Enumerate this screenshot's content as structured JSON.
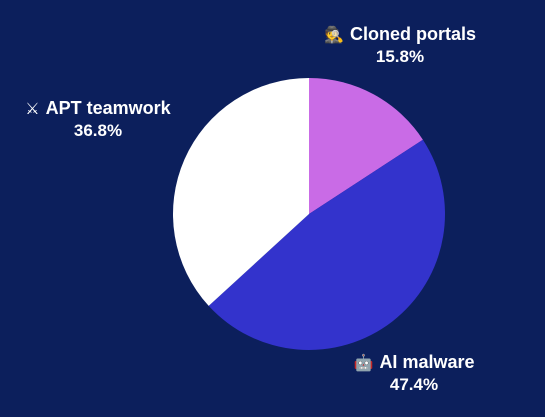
{
  "chart_data": {
    "type": "pie",
    "title": "",
    "slices": [
      {
        "label": "Cloned portals",
        "value": 15.8,
        "display": "15.8%",
        "icon": "🕵",
        "color": "#c96be6"
      },
      {
        "label": "AI malware",
        "value": 47.4,
        "display": "47.4%",
        "icon": "🤖",
        "color": "#3333cc"
      },
      {
        "label": "APT teamwork",
        "value": 36.8,
        "display": "36.8%",
        "icon": "⚔",
        "color": "#ffffff"
      }
    ]
  },
  "colors": {
    "background": "#0c1f5c"
  }
}
